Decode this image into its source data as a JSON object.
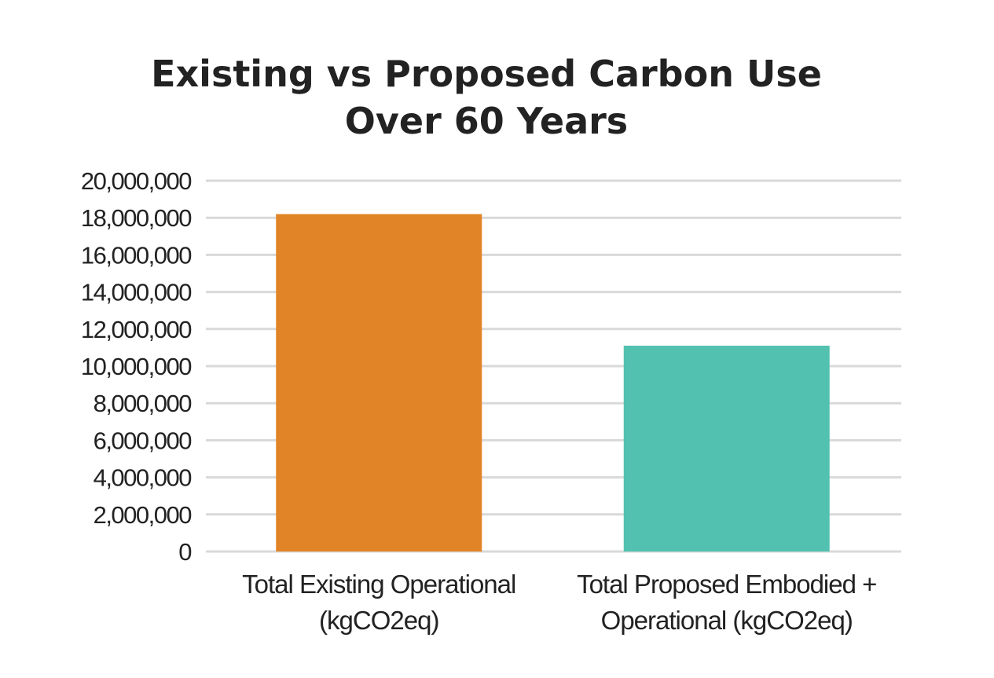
{
  "chart_data": {
    "type": "bar",
    "title": "Existing vs Proposed Carbon Use Over 60 Years",
    "title_lines": [
      "Existing vs Proposed Carbon Use",
      "Over 60 Years"
    ],
    "categories": [
      "Total Existing Operational (kgCO2eq)",
      "Total Proposed Embodied + Operational (kgCO2eq)"
    ],
    "category_label_lines": [
      [
        "Total Existing Operational",
        "(kgCO2eq)"
      ],
      [
        "Total Proposed Embodied +",
        "Operational (kgCO2eq)"
      ]
    ],
    "values": [
      18200000,
      11100000
    ],
    "bar_colors": [
      "#e08427",
      "#52c1b0"
    ],
    "ylim": [
      0,
      20000000
    ],
    "yticks": [
      0,
      2000000,
      4000000,
      6000000,
      8000000,
      10000000,
      12000000,
      14000000,
      16000000,
      18000000,
      20000000
    ],
    "ytick_labels": [
      "0",
      "2,000,000",
      "4,000,000",
      "6,000,000",
      "8,000,000",
      "10,000,000",
      "12,000,000",
      "14,000,000",
      "16,000,000",
      "18,000,000",
      "20,000,000"
    ],
    "xlabel": "",
    "ylabel": "",
    "grid": true,
    "legend": "none"
  }
}
